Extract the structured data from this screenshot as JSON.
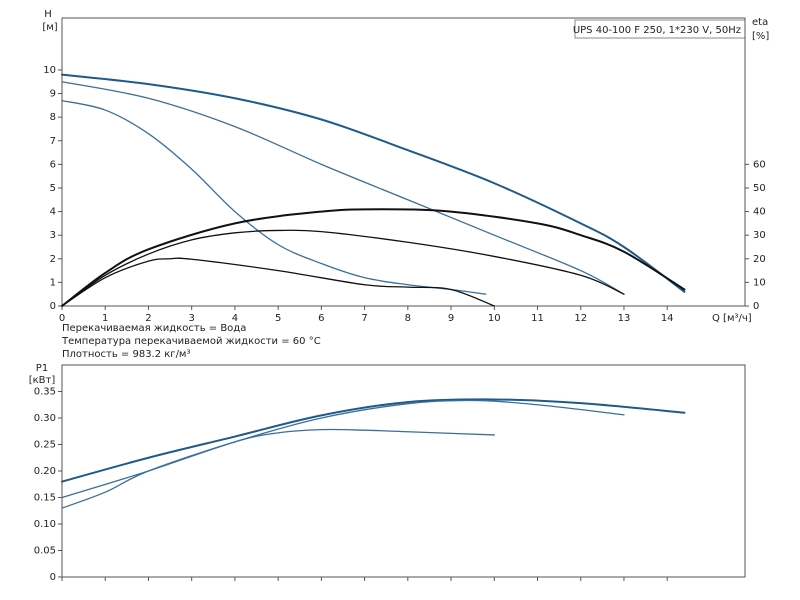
{
  "chart_data": [
    {
      "type": "line",
      "title": "UPS 40-100 F 250, 1*230 V, 50Hz",
      "y_label": "H",
      "y_unit": "[м]",
      "y2_label": "eta",
      "y2_unit": "[%]",
      "x_label": "Q [м³/ч]",
      "notes": [
        "Перекачиваемая жидкость = Вода",
        "Температура перекачиваемой жидкости = 60 °C",
        "Плотность = 983.2 кг/м³"
      ],
      "xlim": [
        0,
        15.8
      ],
      "xticks": [
        0,
        1,
        2,
        3,
        4,
        5,
        6,
        7,
        8,
        9,
        10,
        11,
        12,
        13,
        14
      ],
      "ylim": [
        0,
        12.2
      ],
      "yticks": [
        0,
        1,
        2,
        3,
        4,
        5,
        6,
        7,
        8,
        9,
        10
      ],
      "y2lim": [
        0,
        122
      ],
      "y2ticks": [
        0,
        10,
        20,
        30,
        40,
        50,
        60
      ],
      "grid": false,
      "series": [
        {
          "color": "#1f5a8c",
          "width": 2,
          "x": [
            0,
            2,
            4,
            6,
            8,
            10,
            12,
            13,
            14.4
          ],
          "values": [
            9.8,
            9.4,
            8.8,
            7.9,
            6.6,
            5.2,
            3.5,
            2.5,
            0.6
          ]
        },
        {
          "color": "#3a6f9c",
          "width": 1.3,
          "x": [
            0,
            2,
            4,
            6,
            8,
            10,
            12,
            13
          ],
          "values": [
            9.5,
            8.8,
            7.6,
            6.0,
            4.5,
            3.0,
            1.5,
            0.5
          ]
        },
        {
          "color": "#3a6f9c",
          "width": 1.3,
          "x": [
            0,
            1,
            2,
            3,
            4,
            5,
            6,
            7,
            8,
            9,
            9.8
          ],
          "values": [
            8.7,
            8.3,
            7.3,
            5.8,
            4.0,
            2.6,
            1.8,
            1.2,
            0.9,
            0.7,
            0.5
          ]
        },
        {
          "color": "#111111",
          "width": 2,
          "axis": "y2",
          "x": [
            0,
            1,
            2,
            4,
            6,
            7.4,
            9,
            11,
            12,
            13,
            14.4
          ],
          "values": [
            0,
            14,
            24,
            35,
            40,
            41,
            40,
            35,
            30,
            23,
            7
          ]
        },
        {
          "color": "#111111",
          "width": 1.3,
          "axis": "y2",
          "x": [
            0,
            1,
            2,
            3,
            4,
            5,
            6,
            8,
            10,
            12,
            13
          ],
          "values": [
            0,
            13,
            22,
            28,
            31,
            32,
            31.5,
            27,
            21,
            13,
            5
          ]
        },
        {
          "color": "#111111",
          "width": 1.3,
          "axis": "y2",
          "x": [
            0,
            1,
            2,
            2.5,
            3,
            5,
            7,
            8,
            9,
            10
          ],
          "values": [
            0,
            12,
            19,
            20,
            19.8,
            15,
            9,
            8,
            7,
            0
          ]
        }
      ]
    },
    {
      "type": "line",
      "y_label": "P1",
      "y_unit": "[кВт]",
      "xlim": [
        0,
        15.8
      ],
      "xticks": [
        0,
        1,
        2,
        3,
        4,
        5,
        6,
        7,
        8,
        9,
        10,
        11,
        12,
        13,
        14
      ],
      "ylim": [
        0,
        0.4
      ],
      "yticks": [
        0,
        0.05,
        {
          "value": 0.1,
          "label": "0.10"
        },
        0.15,
        {
          "value": 0.2,
          "label": "0.20"
        },
        0.25,
        {
          "value": 0.3,
          "label": "0.30"
        },
        0.35
      ],
      "grid": false,
      "series": [
        {
          "color": "#1f5a8c",
          "width": 2,
          "x": [
            0,
            2,
            4,
            6,
            8,
            10,
            12,
            14.4
          ],
          "values": [
            0.18,
            0.225,
            0.265,
            0.305,
            0.33,
            0.335,
            0.328,
            0.31
          ]
        },
        {
          "color": "#3a6f9c",
          "width": 1.3,
          "x": [
            0,
            2,
            4,
            6,
            8,
            9.5,
            11,
            13
          ],
          "values": [
            0.15,
            0.2,
            0.255,
            0.3,
            0.327,
            0.333,
            0.325,
            0.306
          ]
        },
        {
          "color": "#3a6f9c",
          "width": 1.3,
          "x": [
            0,
            1,
            2,
            4,
            5,
            6,
            7,
            8,
            10
          ],
          "values": [
            0.13,
            0.16,
            0.2,
            0.255,
            0.272,
            0.278,
            0.277,
            0.274,
            0.268
          ]
        }
      ]
    }
  ]
}
